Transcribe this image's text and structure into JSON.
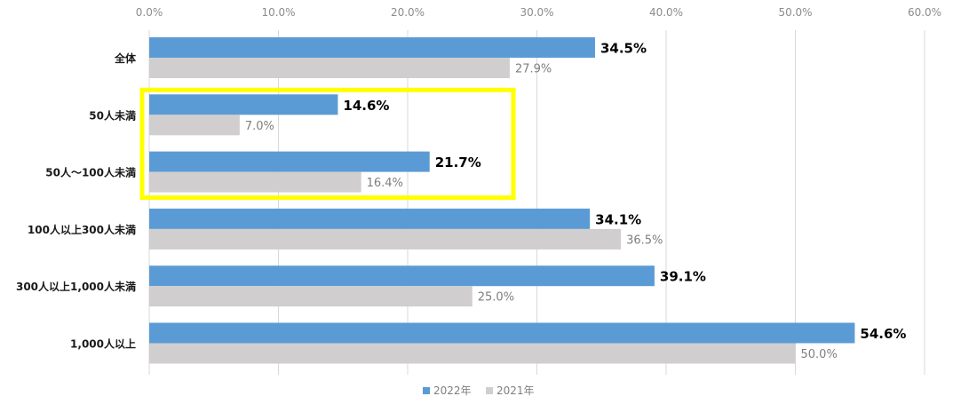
{
  "colors": {
    "series_2022": "#5b9bd5",
    "series_2021": "#d0cece",
    "highlight": "#ffff00",
    "grid": "#d9d9d9"
  },
  "chart_data": {
    "type": "bar",
    "orientation": "horizontal",
    "categories": [
      "全体",
      "50人未満",
      "50人～100人未満",
      "100人以上300人未満",
      "300人以上1,000人未満",
      "1,000人以上"
    ],
    "series": [
      {
        "name": "2022年",
        "values": [
          34.5,
          14.6,
          21.7,
          34.1,
          39.1,
          54.6
        ],
        "labels": [
          "34.5%",
          "14.6%",
          "21.7%",
          "34.1%",
          "39.1%",
          "54.6%"
        ]
      },
      {
        "name": "2021年",
        "values": [
          27.9,
          7.0,
          16.4,
          36.5,
          25.0,
          50.0
        ],
        "labels": [
          "27.9%",
          "7.0%",
          "16.4%",
          "36.5%",
          "25.0%",
          "50.0%"
        ]
      }
    ],
    "xlim": [
      0,
      60
    ],
    "ticks": [
      0,
      10,
      20,
      30,
      40,
      50,
      60
    ],
    "tick_labels": [
      "0.0%",
      "10.0%",
      "20.0%",
      "30.0%",
      "40.0%",
      "50.0%",
      "60.0%"
    ],
    "axis_position": "top",
    "grid": true,
    "legend_position": "bottom",
    "highlighted_categories": [
      "50人未満",
      "50人～100人未満"
    ]
  }
}
